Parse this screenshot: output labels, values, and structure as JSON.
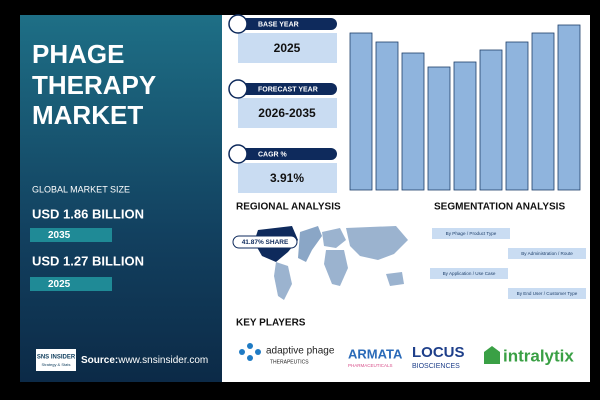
{
  "header": {
    "title": [
      "PHAGE",
      "THERAPY",
      "MARKET"
    ]
  },
  "market_size": {
    "label": "GLOBAL MARKET SIZE",
    "items": [
      {
        "value": "USD 1.86 BILLION",
        "year": "2035"
      },
      {
        "value": "USD 1.27 BILLION",
        "year": "2025"
      }
    ]
  },
  "source": {
    "label": "Source:",
    "url": "www.snsinsider.com"
  },
  "logo": {
    "name": "SNS INSIDER",
    "tagline": "Strategy & Stats"
  },
  "cards": [
    {
      "label": "BASE YEAR",
      "value": "2025"
    },
    {
      "label": "FORECAST YEAR",
      "value": "2026-2035"
    },
    {
      "label": "CAGR %",
      "value": "3.91%"
    }
  ],
  "chart_data": {
    "type": "bar",
    "values": [
      157,
      148,
      137,
      123,
      128,
      140,
      148,
      157,
      165
    ],
    "ylim": [
      0,
      170
    ],
    "color": "#8fb4dd"
  },
  "regional": {
    "title": "REGIONAL ANALYSIS",
    "share": "41.87% SHARE"
  },
  "segmentation": {
    "title": "SEGMENTATION ANALYSIS",
    "items": [
      "By Phage / Product Type",
      "By Administration / Route",
      "By Application / Use Case",
      "By End User / Customer Type"
    ]
  },
  "key_players": {
    "title": "KEY PLAYERS",
    "companies": [
      {
        "name": "adaptive phage",
        "sub": "THERAPEUTICS"
      },
      {
        "name": "ARMATA",
        "sub": "PHARMACEUTICALS"
      },
      {
        "name": "LOCUS",
        "sub": "BIOSCIENCES"
      },
      {
        "name": "intralytix"
      }
    ]
  }
}
